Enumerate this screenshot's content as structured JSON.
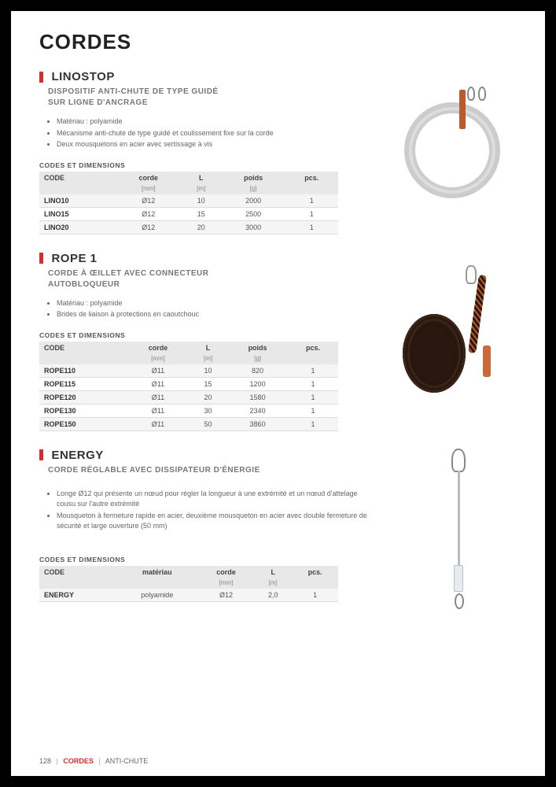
{
  "page_title": "CORDES",
  "accent_color": "#d32f2f",
  "sections": [
    {
      "name": "LINOSTOP",
      "subtitle": "DISPOSITIF ANTI-CHUTE DE TYPE GUIDÉ\nSUR LIGNE D'ANCRAGE",
      "bullets": [
        "Matériau : polyamide",
        "Mécanisme anti-chute de type guidé et coulissement fixe sur la corde",
        "Deux mousquetons en acier avec sertissage à vis"
      ],
      "table_caption": "CODES ET DIMENSIONS",
      "columns": [
        "CODE",
        "corde",
        "L",
        "poids",
        "pcs."
      ],
      "units": [
        "",
        "[mm]",
        "[m]",
        "[g]",
        ""
      ],
      "rows": [
        [
          "LINO10",
          "Ø12",
          "10",
          "2000",
          "1"
        ],
        [
          "LINO15",
          "Ø12",
          "15",
          "2500",
          "1"
        ],
        [
          "LINO20",
          "Ø12",
          "20",
          "3000",
          "1"
        ]
      ]
    },
    {
      "name": "ROPE 1",
      "subtitle": "CORDE À ŒILLET AVEC CONNECTEUR\nAUTOBLOQUEUR",
      "bullets": [
        "Matériau : polyamide",
        "Brides de liaison à protections en caoutchouc"
      ],
      "table_caption": "CODES ET DIMENSIONS",
      "columns": [
        "CODE",
        "corde",
        "L",
        "poids",
        "pcs."
      ],
      "units": [
        "",
        "[mm]",
        "[m]",
        "[g]",
        ""
      ],
      "rows": [
        [
          "ROPE110",
          "Ø11",
          "10",
          "820",
          "1"
        ],
        [
          "ROPE115",
          "Ø11",
          "15",
          "1200",
          "1"
        ],
        [
          "ROPE120",
          "Ø11",
          "20",
          "1580",
          "1"
        ],
        [
          "ROPE130",
          "Ø11",
          "30",
          "2340",
          "1"
        ],
        [
          "ROPE150",
          "Ø11",
          "50",
          "3860",
          "1"
        ]
      ]
    },
    {
      "name": "ENERGY",
      "subtitle": "CORDE RÉGLABLE AVEC DISSIPATEUR D'ÉNERGIE",
      "bullets": [
        "Longe Ø12 qui présente un nœud pour régler la longueur à une extrémité et un nœud d'attelage cousu sur l'autre extrémité",
        "Mousqueton à fermeture rapide en acier, deuxième mousqueton en acier avec double fermeture de sécurité et large ouverture (50 mm)"
      ],
      "table_caption": "CODES ET DIMENSIONS",
      "columns": [
        "CODE",
        "matériau",
        "corde",
        "L",
        "pcs."
      ],
      "units": [
        "",
        "",
        "[mm]",
        "[m]",
        ""
      ],
      "rows": [
        [
          "ENERGY",
          "polyamide",
          "Ø12",
          "2,0",
          "1"
        ]
      ]
    }
  ],
  "footer": {
    "page_no": "128",
    "cat1": "CORDES",
    "cat2": "ANTI-CHUTE"
  }
}
